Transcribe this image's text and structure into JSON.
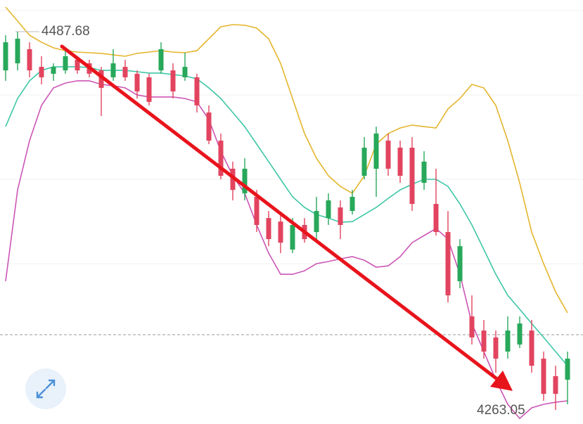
{
  "chart_data": {
    "type": "candlestick",
    "ylim": [
      4254.7,
      4506.5
    ],
    "up_color": "#27a85a",
    "down_color": "#e2445f",
    "max_label": "4487.68",
    "min_label": "4263.05",
    "open": [
      4464.7,
      4468.9,
      4477.3,
      4466.8,
      4462.7,
      4464.7,
      4471.0,
      4468.9,
      4464.7,
      4460.6,
      4466.8,
      4462.7,
      4460.6,
      4464.7,
      4464.7,
      4460.6,
      4460.6,
      4439.7,
      4423.0,
      4406.3,
      4391.7,
      4389.6,
      4377.0,
      4374.9,
      4358.3,
      4372.9,
      4368.7,
      4377.0,
      4383.3,
      4381.2,
      4402.1,
      4406.3,
      4423.0,
      4418.8,
      4418.8,
      4397.9,
      4385.4,
      4368.7,
      4339.5,
      4318.6,
      4310.2,
      4306.1,
      4297.7,
      4301.9,
      4310.2,
      4293.5,
      4283.1,
      4281.0
    ],
    "high": [
      4485.6,
      4487.68,
      4481.4,
      4473.1,
      4468.9,
      4477.3,
      4473.1,
      4471.0,
      4466.8,
      4477.3,
      4471.0,
      4464.7,
      4462.7,
      4481.4,
      4468.9,
      4475.2,
      4462.7,
      4443.9,
      4427.2,
      4410.5,
      4412.5,
      4393.7,
      4381.2,
      4379.1,
      4377.0,
      4377.0,
      4389.6,
      4391.7,
      4387.5,
      4393.7,
      4425.1,
      4431.3,
      4427.2,
      4423.0,
      4425.1,
      4416.7,
      4406.3,
      4381.2,
      4364.5,
      4331.1,
      4316.5,
      4310.2,
      4318.6,
      4318.6,
      4316.5,
      4297.7,
      4289.3,
      4297.7
    ],
    "low": [
      4458.5,
      4464.7,
      4460.6,
      4456.4,
      4458.5,
      4462.7,
      4462.7,
      4460.6,
      4437.6,
      4458.5,
      4458.5,
      4448.0,
      4443.9,
      4462.7,
      4448.0,
      4458.5,
      4439.7,
      4420.9,
      4400.0,
      4387.5,
      4387.5,
      4368.7,
      4360.3,
      4356.2,
      4356.2,
      4362.4,
      4364.5,
      4372.9,
      4364.5,
      4379.1,
      4400.0,
      4389.6,
      4402.1,
      4397.9,
      4381.2,
      4393.7,
      4366.6,
      4326.9,
      4335.3,
      4301.9,
      4293.5,
      4285.2,
      4293.5,
      4299.8,
      4285.2,
      4268.5,
      4263.05,
      4266.4
    ],
    "close": [
      4481.4,
      4483.5,
      4464.7,
      4460.6,
      4466.8,
      4473.1,
      4464.7,
      4462.7,
      4454.3,
      4468.9,
      4460.6,
      4452.2,
      4446.0,
      4477.3,
      4452.2,
      4466.8,
      4443.9,
      4423.0,
      4402.1,
      4393.7,
      4406.3,
      4372.9,
      4364.5,
      4362.4,
      4372.9,
      4364.5,
      4381.2,
      4387.5,
      4372.9,
      4389.6,
      4418.8,
      4427.2,
      4406.3,
      4402.1,
      4385.4,
      4410.5,
      4368.7,
      4331.1,
      4360.3,
      4306.1,
      4297.7,
      4293.5,
      4310.2,
      4314.4,
      4289.3,
      4272.6,
      4272.6,
      4293.5
    ],
    "bands": [
      {
        "color": "#e4b52c",
        "values": [
          4502.3,
          4494.0,
          4485.6,
          4481.4,
          4478.1,
          4476.4,
          4475.6,
          4475.2,
          4474.8,
          4473.9,
          4473.1,
          4474.8,
          4475.6,
          4476.4,
          4475.6,
          4475.2,
          4476.4,
          4483.5,
          4490.6,
          4491.9,
          4491.5,
          4489.8,
          4483.5,
          4468.9,
          4448.0,
          4427.2,
          4412.5,
          4402.1,
          4395.8,
          4391.7,
          4402.1,
          4420.9,
          4427.2,
          4430.5,
          4432.2,
          4431.3,
          4430.5,
          4441.8,
          4448.0,
          4456.4,
          4454.3,
          4443.9,
          4423.0,
          4397.9,
          4368.7,
          4349.9,
          4333.2,
          4320.7
        ]
      },
      {
        "color": "#3ec6a6",
        "values": [
          4431.3,
          4448.0,
          4458.5,
          4464.7,
          4466.8,
          4466.8,
          4466.8,
          4466.4,
          4464.7,
          4464.7,
          4464.7,
          4463.9,
          4463.1,
          4463.1,
          4462.2,
          4461.4,
          4459.7,
          4454.3,
          4448.0,
          4439.7,
          4431.3,
          4420.9,
          4410.5,
          4400.0,
          4389.6,
          4383.3,
          4379.1,
          4377.0,
          4374.5,
          4374.9,
          4379.1,
          4383.3,
          4388.7,
          4393.7,
          4397.1,
          4400.0,
          4400.0,
          4395.8,
          4385.4,
          4372.9,
          4358.3,
          4343.6,
          4331.1,
          4322.8,
          4314.4,
          4306.1,
          4297.7,
          4289.3
        ]
      },
      {
        "color": "#cc56b6",
        "values": [
          4339.5,
          4393.7,
          4423.0,
          4443.9,
          4454.3,
          4457.2,
          4458.5,
          4458.5,
          4456.4,
          4455.6,
          4454.3,
          4450.1,
          4448.9,
          4448.9,
          4448.9,
          4448.0,
          4446.0,
          4435.5,
          4416.7,
          4402.1,
          4391.7,
          4372.9,
          4356.2,
          4343.6,
          4343.6,
          4345.7,
          4349.9,
          4351.2,
          4352.8,
          4354.1,
          4352.0,
          4347.8,
          4348.6,
          4354.1,
          4362.4,
          4366.6,
          4370.8,
          4364.5,
          4343.6,
          4314.4,
          4297.7,
          4281.0,
          4266.4,
          4258.0,
          4264.3,
          4266.4,
          4267.6,
          4268.5
        ]
      }
    ]
  }
}
